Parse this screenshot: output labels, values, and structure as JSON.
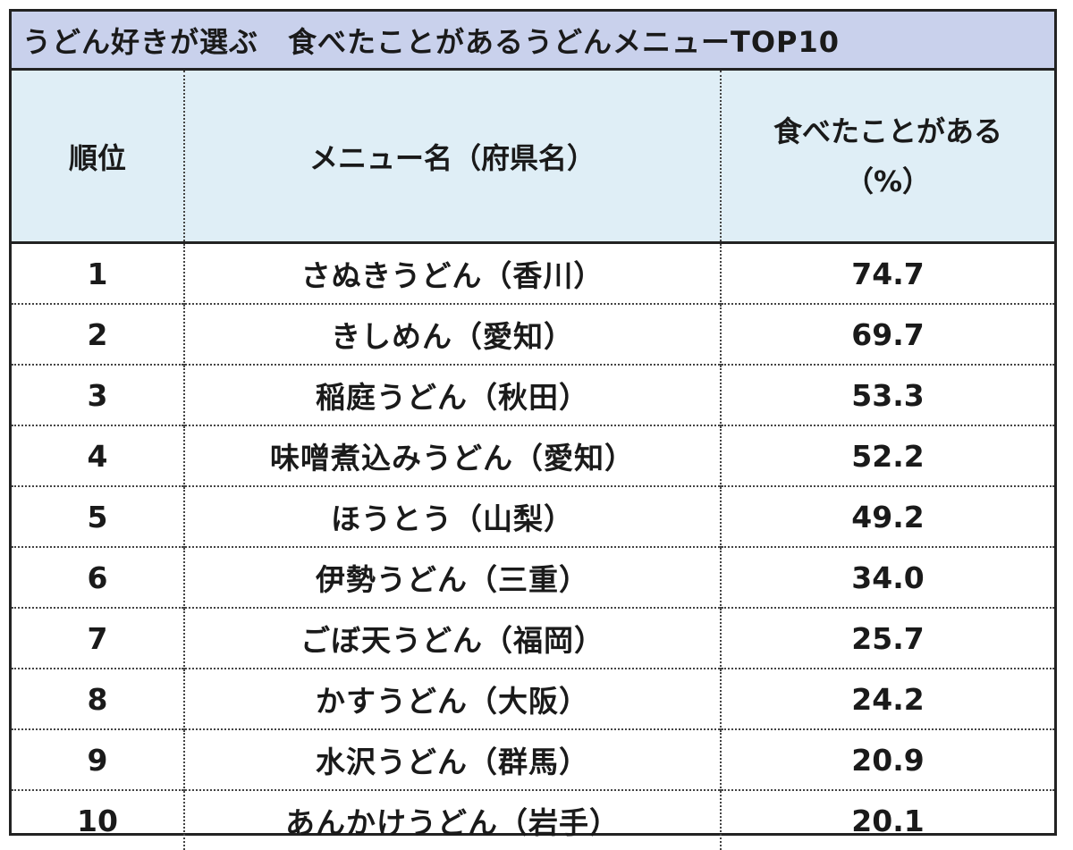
{
  "title": "うどん好きが選ぶ　食べたことがあるうどんメニューTOP10",
  "headers": {
    "rank": "順位",
    "name": "メニュー名（府県名）",
    "pct_line1": "食べたことがある",
    "pct_line2": "（%）"
  },
  "rows": [
    {
      "rank": "1",
      "name": "さぬきうどん（香川）",
      "pct": "74.7"
    },
    {
      "rank": "2",
      "name": "きしめん（愛知）",
      "pct": "69.7"
    },
    {
      "rank": "3",
      "name": "稲庭うどん（秋田）",
      "pct": "53.3"
    },
    {
      "rank": "4",
      "name": "味噌煮込みうどん（愛知）",
      "pct": "52.2"
    },
    {
      "rank": "5",
      "name": "ほうとう（山梨）",
      "pct": "49.2"
    },
    {
      "rank": "6",
      "name": "伊勢うどん（三重）",
      "pct": "34.0"
    },
    {
      "rank": "7",
      "name": "ごぼ天うどん（福岡）",
      "pct": "25.7"
    },
    {
      "rank": "8",
      "name": "かすうどん（大阪）",
      "pct": "24.2"
    },
    {
      "rank": "9",
      "name": "水沢うどん（群馬）",
      "pct": "20.9"
    },
    {
      "rank": "10",
      "name": "あんかけうどん（岩手）",
      "pct": "20.1"
    }
  ],
  "colors": {
    "title_bg": "#c9d1ec",
    "header_bg": "#dfeef6",
    "border": "#222222"
  }
}
